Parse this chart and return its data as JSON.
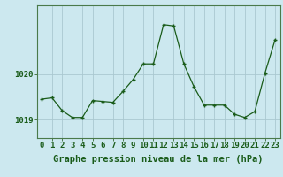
{
  "x": [
    0,
    1,
    2,
    3,
    4,
    5,
    6,
    7,
    8,
    9,
    10,
    11,
    12,
    13,
    14,
    15,
    16,
    17,
    18,
    19,
    20,
    21,
    22,
    23
  ],
  "y": [
    1019.45,
    1019.48,
    1019.2,
    1019.05,
    1019.05,
    1019.42,
    1019.4,
    1019.38,
    1019.62,
    1019.88,
    1020.22,
    1020.22,
    1021.08,
    1021.05,
    1020.22,
    1019.72,
    1019.32,
    1019.32,
    1019.32,
    1019.12,
    1019.05,
    1019.18,
    1020.02,
    1020.75
  ],
  "line_color": "#1a5c1a",
  "marker_color": "#1a5c1a",
  "bg_color": "#cce8ef",
  "grid_color": "#aac8d0",
  "xlabel": "Graphe pression niveau de la mer (hPa)",
  "yticks": [
    1019,
    1020
  ],
  "ylim": [
    1018.6,
    1021.5
  ],
  "xlim": [
    -0.5,
    23.5
  ],
  "xlabel_fontsize": 7.5,
  "tick_fontsize": 6.5,
  "spine_color": "#4a7a4a"
}
